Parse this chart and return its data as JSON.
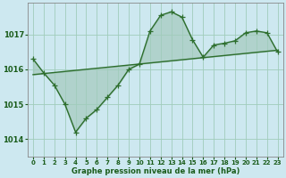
{
  "title": "Graphe pression niveau de la mer (hPa)",
  "bg_color": "#cde8f0",
  "plot_bg_color": "#cde8f0",
  "line_color": "#2d6e2d",
  "grid_color": "#a0ccbb",
  "text_color": "#1a5c1a",
  "ylim": [
    1013.5,
    1017.9
  ],
  "yticks": [
    1014,
    1015,
    1016,
    1017
  ],
  "xticks": [
    0,
    1,
    2,
    3,
    4,
    5,
    6,
    7,
    8,
    9,
    10,
    11,
    12,
    13,
    14,
    15,
    16,
    17,
    18,
    19,
    20,
    21,
    22,
    23
  ],
  "curve1_x": [
    0,
    1,
    2,
    3,
    4,
    5,
    6,
    7,
    8,
    9,
    10,
    11,
    12,
    13,
    14,
    15,
    16,
    17,
    18,
    19,
    20,
    21,
    22,
    23
  ],
  "curve1_y": [
    1016.3,
    1015.9,
    1015.55,
    1015.0,
    1014.2,
    1014.6,
    1014.85,
    1015.2,
    1015.55,
    1016.0,
    1016.15,
    1017.1,
    1017.55,
    1017.65,
    1017.5,
    1016.85,
    1016.35,
    1016.7,
    1016.75,
    1016.82,
    1017.05,
    1017.1,
    1017.05,
    1016.5
  ],
  "curve2_x": [
    0,
    23
  ],
  "curve2_y": [
    1015.85,
    1016.55
  ],
  "marker": "+",
  "marker_size": 4,
  "line_width": 1.0,
  "fill_alpha": 0.18
}
